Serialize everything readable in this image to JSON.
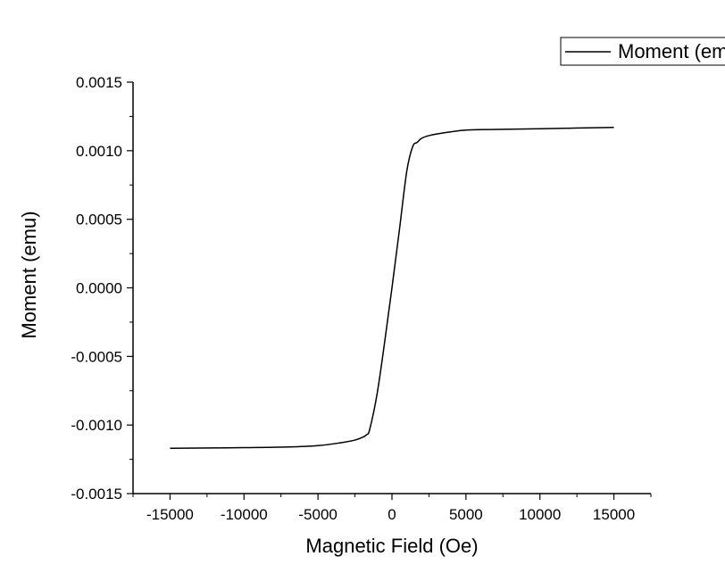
{
  "chart_data": {
    "type": "line",
    "xlabel": "Magnetic Field (Oe)",
    "ylabel": "Moment (emu)",
    "xlim": [
      -17500,
      17500
    ],
    "ylim": [
      -0.0015,
      0.0015
    ],
    "x_ticks": [
      -15000,
      -10000,
      -5000,
      0,
      5000,
      10000,
      15000
    ],
    "x_tick_labels": [
      "-15000",
      "-10000",
      "-5000",
      "0",
      "5000",
      "10000",
      "15000"
    ],
    "y_ticks": [
      -0.0015,
      -0.001,
      -0.0005,
      0,
      0.0005,
      0.001,
      0.0015
    ],
    "y_tick_labels": [
      "-0.0015",
      "-0.0010",
      "-0.0005",
      "0.0000",
      "0.0005",
      "0.0010",
      "0.0015"
    ],
    "grid": false,
    "legend_position": "top-right",
    "line_color": "#000000",
    "series": [
      {
        "name": "Moment (emu)",
        "x": [
          -15000,
          -10000,
          -7000,
          -5000,
          -3500,
          -2500,
          -2000,
          -1700,
          -1500,
          -1000,
          -500,
          0,
          500,
          1000,
          1400,
          1700,
          2000,
          2500,
          3500,
          5000,
          7000,
          10000,
          15000
        ],
        "y": [
          -0.00117,
          -0.001165,
          -0.00116,
          -0.00115,
          -0.00113,
          -0.00111,
          -0.00109,
          -0.00107,
          -0.00103,
          -0.00077,
          -0.0004,
          0,
          0.00042,
          0.00085,
          0.00103,
          0.00106,
          0.00109,
          0.00111,
          0.00113,
          0.00115,
          0.001155,
          0.00116,
          0.00117
        ]
      }
    ]
  }
}
